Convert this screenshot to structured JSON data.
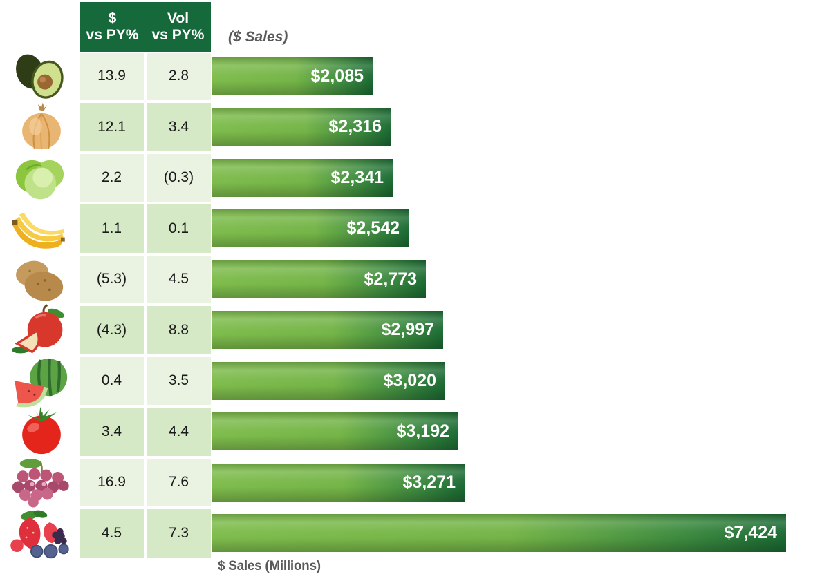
{
  "table_header": {
    "col1_line1": "$",
    "col1_line2": "vs PY%",
    "col2_line1": "Vol",
    "col2_line2": "vs PY%"
  },
  "chart_title": "($ Sales)",
  "axis_label": "$ Sales (Millions)",
  "colors": {
    "header_green": "#16693a",
    "row_light": "#eaf3e1",
    "row_dark": "#d5e9c6",
    "bar_gradient_light": "#7ebc4c",
    "bar_gradient_dark": "#1b6a33",
    "bar_label": "#ffffff",
    "muted_text": "#595959",
    "table_text": "#1a1a1a"
  },
  "rows": [
    {
      "icon": "avocado-icon",
      "dollar_vs_py": "13.9",
      "vol_vs_py": "2.8",
      "sales_label": "$2,085",
      "sales_value": 2085
    },
    {
      "icon": "onion-icon",
      "dollar_vs_py": "12.1",
      "vol_vs_py": "3.4",
      "sales_label": "$2,316",
      "sales_value": 2316
    },
    {
      "icon": "lettuce-icon",
      "dollar_vs_py": "2.2",
      "vol_vs_py": "(0.3)",
      "sales_label": "$2,341",
      "sales_value": 2341
    },
    {
      "icon": "banana-icon",
      "dollar_vs_py": "1.1",
      "vol_vs_py": "0.1",
      "sales_label": "$2,542",
      "sales_value": 2542
    },
    {
      "icon": "potato-icon",
      "dollar_vs_py": "(5.3)",
      "vol_vs_py": "4.5",
      "sales_label": "$2,773",
      "sales_value": 2773
    },
    {
      "icon": "apple-icon",
      "dollar_vs_py": "(4.3)",
      "vol_vs_py": "8.8",
      "sales_label": "$2,997",
      "sales_value": 2997
    },
    {
      "icon": "watermelon-icon",
      "dollar_vs_py": "0.4",
      "vol_vs_py": "3.5",
      "sales_label": "$3,020",
      "sales_value": 3020
    },
    {
      "icon": "tomato-icon",
      "dollar_vs_py": "3.4",
      "vol_vs_py": "4.4",
      "sales_label": "$3,192",
      "sales_value": 3192
    },
    {
      "icon": "grapes-icon",
      "dollar_vs_py": "16.9",
      "vol_vs_py": "7.6",
      "sales_label": "$3,271",
      "sales_value": 3271
    },
    {
      "icon": "berries-icon",
      "dollar_vs_py": "4.5",
      "vol_vs_py": "7.3",
      "sales_label": "$7,424",
      "sales_value": 7424
    }
  ],
  "chart_data": {
    "type": "bar",
    "orientation": "horizontal",
    "title": "($ Sales)",
    "xlabel": "$ Sales (Millions)",
    "categories": [
      "Avocados",
      "Onions",
      "Lettuce",
      "Bananas",
      "Potatoes",
      "Apples",
      "Watermelon",
      "Tomatoes",
      "Grapes",
      "Berries"
    ],
    "series": [
      {
        "name": "$ vs PY%",
        "values": [
          13.9,
          12.1,
          2.2,
          1.1,
          -5.3,
          -4.3,
          0.4,
          3.4,
          16.9,
          4.5
        ]
      },
      {
        "name": "Vol vs PY%",
        "values": [
          2.8,
          3.4,
          -0.3,
          0.1,
          4.5,
          8.8,
          3.5,
          4.4,
          7.6,
          7.3
        ]
      },
      {
        "name": "$ Sales (Millions)",
        "values": [
          2085,
          2316,
          2341,
          2542,
          2773,
          2997,
          3020,
          3192,
          3271,
          7424
        ]
      }
    ],
    "value_labels": [
      "$2,085",
      "$2,316",
      "$2,341",
      "$2,542",
      "$2,773",
      "$2,997",
      "$3,020",
      "$3,192",
      "$3,271",
      "$7,424"
    ],
    "xlim": [
      0,
      7424
    ],
    "grid": false,
    "legend": false
  }
}
